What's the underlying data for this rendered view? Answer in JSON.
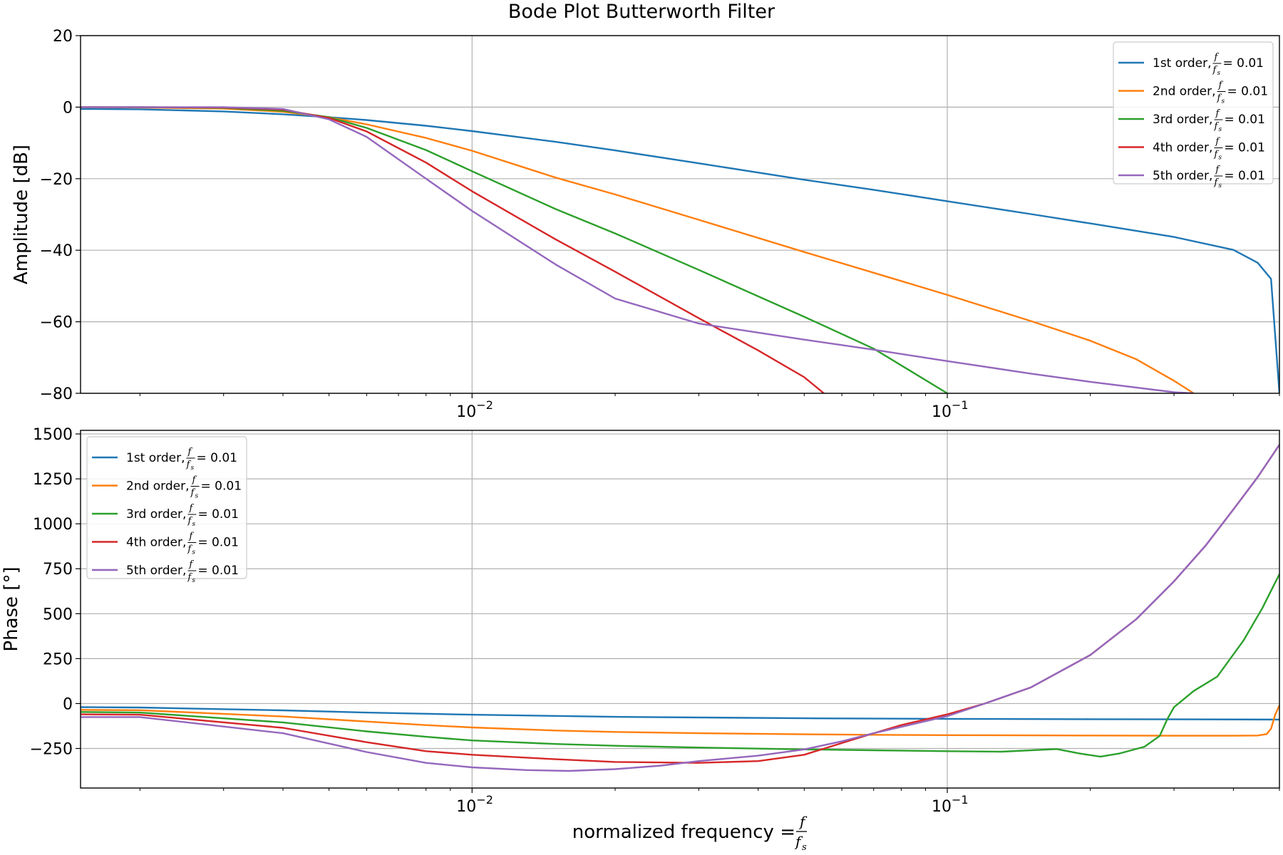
{
  "chart_data": [
    {
      "id": "amplitude",
      "type": "line",
      "title": "Bode Plot Butterworth Filter",
      "xlabel": "",
      "ylabel": "Amplitude [dB]",
      "xscale": "log",
      "xlim": [
        0.0015,
        0.5
      ],
      "ylim": [
        -80,
        20
      ],
      "yticks": [
        20,
        0,
        -20,
        -40,
        -60,
        -80
      ],
      "ytick_labels": [
        "20",
        "0",
        "−20",
        "−40",
        "−60",
        "−80"
      ],
      "xticks": [
        0.01,
        0.1
      ],
      "xtick_labels": [
        "10",
        "10"
      ],
      "xtick_exponents": [
        "−2",
        "−1"
      ],
      "grid": true,
      "legend_placement": "top-right",
      "series": [
        {
          "name": "1st order, ",
          "color": "#1f77b4",
          "x": [
            0.0015,
            0.002,
            0.003,
            0.004,
            0.005,
            0.006,
            0.008,
            0.01,
            0.015,
            0.02,
            0.03,
            0.05,
            0.07,
            0.1,
            0.15,
            0.2,
            0.3,
            0.4,
            0.45,
            0.48,
            0.5
          ],
          "y": [
            -0.5,
            -0.6,
            -1.2,
            -2.0,
            -2.8,
            -3.6,
            -5.2,
            -6.7,
            -9.7,
            -12.1,
            -15.7,
            -20.3,
            -23.1,
            -26.3,
            -29.9,
            -32.5,
            -36.3,
            -39.9,
            -43.5,
            -48.0,
            -80
          ]
        },
        {
          "name": "2nd order, ",
          "color": "#ff7f0e",
          "x": [
            0.0015,
            0.002,
            0.003,
            0.004,
            0.005,
            0.006,
            0.008,
            0.01,
            0.015,
            0.02,
            0.03,
            0.05,
            0.07,
            0.1,
            0.15,
            0.2,
            0.25,
            0.3,
            0.33
          ],
          "y": [
            0,
            -0.1,
            -0.4,
            -1.3,
            -2.8,
            -4.8,
            -8.6,
            -12.2,
            -19.7,
            -24.4,
            -31.5,
            -40.5,
            -46.3,
            -52.5,
            -59.8,
            -65.3,
            -70.5,
            -76.5,
            -80
          ]
        },
        {
          "name": "3rd order, ",
          "color": "#2ca02c",
          "x": [
            0.0015,
            0.002,
            0.003,
            0.004,
            0.005,
            0.006,
            0.008,
            0.01,
            0.015,
            0.02,
            0.03,
            0.05,
            0.07,
            0.1
          ],
          "y": [
            0,
            0,
            -0.2,
            -1.0,
            -2.8,
            -5.8,
            -12.0,
            -17.9,
            -28.5,
            -35.3,
            -45.5,
            -58.6,
            -67.5,
            -80
          ]
        },
        {
          "name": "4th order, ",
          "color": "#d62728",
          "x": [
            0.0015,
            0.002,
            0.003,
            0.004,
            0.005,
            0.006,
            0.008,
            0.01,
            0.015,
            0.02,
            0.03,
            0.04,
            0.05,
            0.055
          ],
          "y": [
            0,
            0,
            -0.1,
            -0.7,
            -3.0,
            -6.8,
            -15.5,
            -23.5,
            -37.0,
            -46.0,
            -59.0,
            -68.0,
            -75.5,
            -80
          ]
        },
        {
          "name": "5th order, ",
          "color": "#9467bd",
          "x": [
            0.0015,
            0.002,
            0.003,
            0.004,
            0.005,
            0.006,
            0.008,
            0.01,
            0.015,
            0.02,
            0.03,
            0.05,
            0.07,
            0.1,
            0.15,
            0.2,
            0.3,
            0.33
          ],
          "y": [
            0,
            0,
            0,
            -0.5,
            -3.4,
            -8.3,
            -20.0,
            -29.0,
            -44.0,
            -53.5,
            -60.5,
            -65.0,
            -67.8,
            -71.0,
            -74.5,
            -76.8,
            -79.7,
            -80
          ]
        }
      ]
    },
    {
      "id": "phase",
      "type": "line",
      "title": "",
      "xlabel": "normalized frequency = ",
      "ylabel": "Phase [°]",
      "xscale": "log",
      "xlim": [
        0.0015,
        0.5
      ],
      "ylim": [
        -470,
        1520
      ],
      "yticks": [
        1500,
        1250,
        1000,
        750,
        500,
        250,
        0,
        -250
      ],
      "ytick_labels": [
        "1500",
        "1250",
        "1000",
        "750",
        "500",
        "250",
        "0",
        "−250"
      ],
      "xticks": [
        0.01,
        0.1
      ],
      "xtick_labels": [
        "10",
        "10"
      ],
      "xtick_exponents": [
        "−2",
        "−1"
      ],
      "grid": true,
      "legend_placement": "top-left",
      "series": [
        {
          "name": "1st order, ",
          "color": "#1f77b4",
          "x": [
            0.0015,
            0.002,
            0.004,
            0.006,
            0.01,
            0.02,
            0.05,
            0.1,
            0.2,
            0.3,
            0.5
          ],
          "y": [
            -20,
            -22,
            -38,
            -50,
            -62,
            -74,
            -82,
            -85,
            -87,
            -88,
            -89
          ]
        },
        {
          "name": "2nd order, ",
          "color": "#ff7f0e",
          "x": [
            0.0015,
            0.002,
            0.004,
            0.006,
            0.008,
            0.01,
            0.015,
            0.02,
            0.03,
            0.05,
            0.07,
            0.1,
            0.2,
            0.3,
            0.4,
            0.45,
            0.47,
            0.48,
            0.49,
            0.5
          ],
          "y": [
            -35,
            -37,
            -72,
            -100,
            -120,
            -133,
            -150,
            -158,
            -165,
            -171,
            -174,
            -176,
            -178,
            -179,
            -179,
            -178,
            -170,
            -140,
            -60,
            -10
          ]
        },
        {
          "name": "3rd order, ",
          "color": "#2ca02c",
          "x": [
            0.0015,
            0.002,
            0.004,
            0.006,
            0.008,
            0.01,
            0.015,
            0.02,
            0.03,
            0.05,
            0.07,
            0.1,
            0.13,
            0.17,
            0.19,
            0.21,
            0.23,
            0.26,
            0.28,
            0.29,
            0.3,
            0.33,
            0.37,
            0.42,
            0.46,
            0.5
          ],
          "y": [
            -47,
            -50,
            -105,
            -155,
            -185,
            -205,
            -225,
            -235,
            -245,
            -255,
            -260,
            -265,
            -268,
            -253,
            -278,
            -295,
            -278,
            -240,
            -180,
            -90,
            -20,
            70,
            150,
            350,
            530,
            720
          ]
        },
        {
          "name": "4th order, ",
          "color": "#d62728",
          "x": [
            0.0015,
            0.002,
            0.004,
            0.006,
            0.008,
            0.01,
            0.015,
            0.02,
            0.03,
            0.04,
            0.05,
            0.06,
            0.07,
            0.08,
            0.1,
            0.12,
            0.15,
            0.2,
            0.25,
            0.3,
            0.35,
            0.4,
            0.45,
            0.5
          ],
          "y": [
            -60,
            -62,
            -135,
            -215,
            -265,
            -285,
            -310,
            -325,
            -330,
            -320,
            -285,
            -220,
            -165,
            -120,
            -60,
            0,
            90,
            270,
            470,
            680,
            880,
            1080,
            1260,
            1440
          ]
        },
        {
          "name": "5th order, ",
          "color": "#9467bd",
          "x": [
            0.0015,
            0.002,
            0.004,
            0.006,
            0.008,
            0.01,
            0.013,
            0.016,
            0.02,
            0.025,
            0.03,
            0.04,
            0.05,
            0.06,
            0.07,
            0.08,
            0.1,
            0.12,
            0.15,
            0.2,
            0.25,
            0.3,
            0.35,
            0.4,
            0.45,
            0.5
          ],
          "y": [
            -75,
            -75,
            -165,
            -270,
            -330,
            -355,
            -370,
            -375,
            -365,
            -345,
            -320,
            -290,
            -255,
            -210,
            -165,
            -130,
            -70,
            0,
            90,
            270,
            470,
            680,
            880,
            1080,
            1260,
            1440
          ]
        }
      ]
    }
  ],
  "legend": {
    "formula_f": "f",
    "formula_fs": "f",
    "formula_sub": "s",
    "value_text": " = 0.01"
  }
}
